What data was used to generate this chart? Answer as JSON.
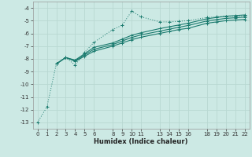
{
  "xlabel": "Humidex (Indice chaleur)",
  "background_color": "#cce9e4",
  "grid_color": "#b8d8d2",
  "line_color": "#1a7a6e",
  "series": {
    "line1": {
      "x": [
        0,
        1,
        2,
        3,
        4,
        5,
        6,
        8,
        9,
        10,
        11,
        13,
        14,
        15,
        16,
        18,
        19,
        20,
        21,
        22
      ],
      "y": [
        -13.0,
        -11.8,
        -8.4,
        -7.9,
        -8.5,
        -7.5,
        -6.7,
        -5.7,
        -5.35,
        -4.25,
        -4.7,
        -5.1,
        -5.1,
        -5.05,
        -5.0,
        -4.75,
        -4.7,
        -4.65,
        -4.65,
        -4.6
      ],
      "style": "dotted"
    },
    "line2": {
      "x": [
        2,
        3,
        4,
        5,
        6,
        8,
        9,
        10,
        11,
        13,
        14,
        15,
        16,
        18,
        19,
        20,
        21,
        22
      ],
      "y": [
        -8.4,
        -7.9,
        -8.2,
        -7.8,
        -7.4,
        -7.0,
        -6.75,
        -6.5,
        -6.3,
        -6.0,
        -5.85,
        -5.7,
        -5.6,
        -5.2,
        -5.1,
        -5.0,
        -4.95,
        -4.9
      ],
      "style": "solid"
    },
    "line3": {
      "x": [
        2,
        3,
        4,
        5,
        6,
        8,
        9,
        10,
        11,
        13,
        14,
        15,
        16,
        18,
        19,
        20,
        21,
        22
      ],
      "y": [
        -8.4,
        -7.9,
        -8.15,
        -7.7,
        -7.25,
        -6.88,
        -6.6,
        -6.32,
        -6.12,
        -5.82,
        -5.67,
        -5.52,
        -5.38,
        -5.02,
        -4.92,
        -4.82,
        -4.77,
        -4.72
      ],
      "style": "solid"
    },
    "line4": {
      "x": [
        2,
        3,
        4,
        5,
        6,
        8,
        9,
        10,
        11,
        13,
        14,
        15,
        16,
        18,
        19,
        20,
        21,
        22
      ],
      "y": [
        -8.4,
        -7.9,
        -8.1,
        -7.6,
        -7.1,
        -6.75,
        -6.45,
        -6.15,
        -5.95,
        -5.62,
        -5.48,
        -5.34,
        -5.2,
        -4.85,
        -4.75,
        -4.65,
        -4.6,
        -4.55
      ],
      "style": "solid"
    }
  },
  "xlim": [
    -0.5,
    22.5
  ],
  "ylim": [
    -13.5,
    -3.5
  ],
  "xticks": [
    0,
    1,
    2,
    3,
    4,
    5,
    6,
    8,
    9,
    10,
    11,
    13,
    14,
    15,
    16,
    18,
    19,
    20,
    21,
    22
  ],
  "yticks": [
    -13,
    -12,
    -11,
    -10,
    -9,
    -8,
    -7,
    -6,
    -5,
    -4
  ]
}
